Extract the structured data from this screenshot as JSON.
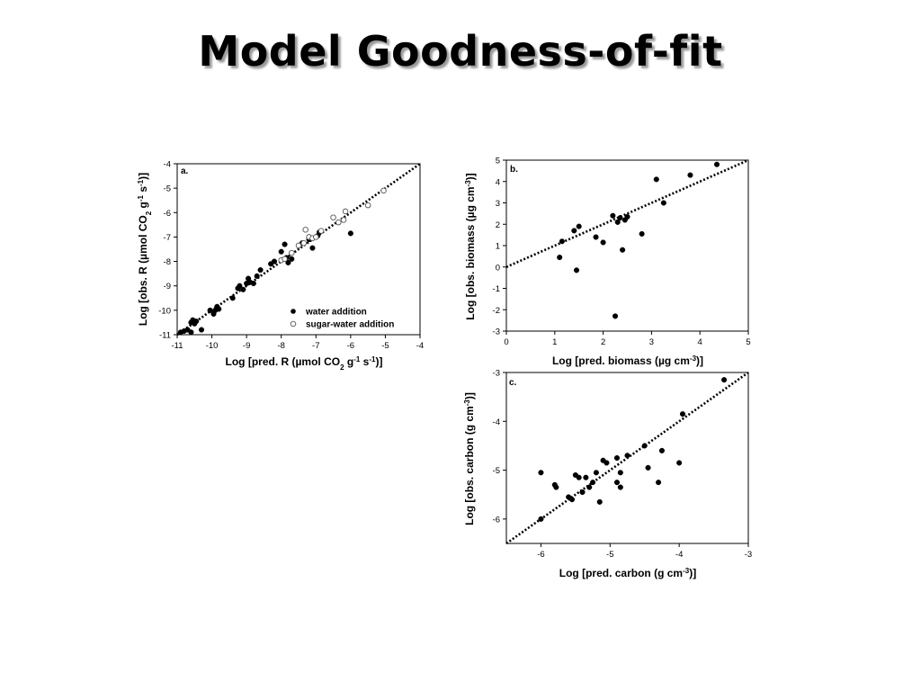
{
  "slide": {
    "title": "Model Goodness-of-fit"
  },
  "colors": {
    "marker": "#000000",
    "open_marker_stroke": "#555555",
    "fit_line": "#000000",
    "text_shadow": "#9a9a9a"
  },
  "chart_data": [
    {
      "type": "scatter",
      "panel_label": "a.",
      "xlabel": "Log [pred. R (µmol CO2 g-1 s-1)]",
      "ylabel": "Log [obs. R (µmol CO2 g-1 s-1)]",
      "xlim": [
        -11,
        -4
      ],
      "ylim": [
        -11,
        -4
      ],
      "x_ticks": [
        -11,
        -10,
        -9,
        -8,
        -7,
        -6,
        -5,
        -4
      ],
      "y_ticks": [
        -11,
        -10,
        -9,
        -8,
        -7,
        -6,
        -5,
        -4
      ],
      "fit_line": [
        [
          -11,
          -11
        ],
        [
          -4,
          -4
        ]
      ],
      "legend": {
        "position": "bottom-right"
      },
      "series": [
        {
          "name": "water addition",
          "marker": "filled",
          "points": [
            [
              -10.9,
              -10.9
            ],
            [
              -10.8,
              -10.85
            ],
            [
              -10.7,
              -10.8
            ],
            [
              -10.6,
              -10.5
            ],
            [
              -10.55,
              -10.4
            ],
            [
              -10.5,
              -10.55
            ],
            [
              -10.45,
              -10.45
            ],
            [
              -10.6,
              -10.9
            ],
            [
              -10.3,
              -10.8
            ],
            [
              -10.05,
              -10.0
            ],
            [
              -9.95,
              -10.15
            ],
            [
              -9.9,
              -10.0
            ],
            [
              -9.85,
              -9.85
            ],
            [
              -9.8,
              -9.95
            ],
            [
              -9.4,
              -9.5
            ],
            [
              -9.25,
              -9.1
            ],
            [
              -9.2,
              -9.0
            ],
            [
              -9.1,
              -9.15
            ],
            [
              -9.0,
              -8.9
            ],
            [
              -8.95,
              -8.7
            ],
            [
              -8.9,
              -8.85
            ],
            [
              -8.8,
              -8.9
            ],
            [
              -8.7,
              -8.6
            ],
            [
              -8.6,
              -8.35
            ],
            [
              -8.3,
              -8.1
            ],
            [
              -8.2,
              -8.0
            ],
            [
              -8.0,
              -7.6
            ],
            [
              -7.9,
              -7.3
            ],
            [
              -7.85,
              -7.85
            ],
            [
              -7.8,
              -8.05
            ],
            [
              -7.7,
              -7.9
            ],
            [
              -7.4,
              -7.25
            ],
            [
              -7.2,
              -7.1
            ],
            [
              -7.1,
              -7.45
            ],
            [
              -6.95,
              -6.95
            ],
            [
              -6.9,
              -6.8
            ],
            [
              -6.0,
              -6.85
            ]
          ]
        },
        {
          "name": "sugar-water addition",
          "marker": "open",
          "points": [
            [
              -8.0,
              -7.95
            ],
            [
              -7.9,
              -7.9
            ],
            [
              -7.7,
              -7.65
            ],
            [
              -7.5,
              -7.35
            ],
            [
              -7.35,
              -7.25
            ],
            [
              -7.3,
              -6.7
            ],
            [
              -7.2,
              -7.0
            ],
            [
              -7.1,
              -7.05
            ],
            [
              -7.0,
              -7.0
            ],
            [
              -6.85,
              -6.75
            ],
            [
              -6.5,
              -6.2
            ],
            [
              -6.35,
              -6.4
            ],
            [
              -6.2,
              -6.3
            ],
            [
              -6.15,
              -5.95
            ],
            [
              -5.5,
              -5.7
            ],
            [
              -5.05,
              -5.1
            ]
          ]
        }
      ]
    },
    {
      "type": "scatter",
      "panel_label": "b.",
      "xlabel": "Log [pred. biomass (µg cm-3)]",
      "ylabel": "Log [obs. biomass (µg cm-3)]",
      "xlim": [
        0,
        5
      ],
      "ylim": [
        -3,
        5
      ],
      "x_ticks": [
        0,
        1,
        2,
        3,
        4,
        5
      ],
      "y_ticks": [
        -3,
        -2,
        -1,
        0,
        1,
        2,
        3,
        4,
        5
      ],
      "fit_line": [
        [
          0,
          0
        ],
        [
          5,
          5
        ]
      ],
      "series": [
        {
          "name": "",
          "marker": "filled",
          "points": [
            [
              1.1,
              0.45
            ],
            [
              1.15,
              1.2
            ],
            [
              1.4,
              1.7
            ],
            [
              1.45,
              -0.15
            ],
            [
              1.5,
              1.9
            ],
            [
              1.85,
              1.4
            ],
            [
              2.0,
              1.15
            ],
            [
              2.2,
              2.4
            ],
            [
              2.25,
              -2.3
            ],
            [
              2.3,
              2.1
            ],
            [
              2.35,
              2.3
            ],
            [
              2.4,
              0.8
            ],
            [
              2.45,
              2.2
            ],
            [
              2.5,
              2.35
            ],
            [
              2.8,
              1.55
            ],
            [
              3.1,
              4.1
            ],
            [
              3.25,
              3.0
            ],
            [
              3.8,
              4.3
            ],
            [
              4.35,
              4.8
            ]
          ]
        }
      ]
    },
    {
      "type": "scatter",
      "panel_label": "c.",
      "xlabel": "Log [pred. carbon (g cm-3)]",
      "ylabel": "Log [obs. carbon (g cm-3)]",
      "xlim": [
        -6.5,
        -3
      ],
      "ylim": [
        -6.5,
        -3
      ],
      "x_ticks": [
        -6,
        -5,
        -4,
        -3
      ],
      "y_ticks": [
        -6,
        -5,
        -4,
        -3
      ],
      "fit_line": [
        [
          -6.5,
          -6.5
        ],
        [
          -3,
          -3
        ]
      ],
      "series": [
        {
          "name": "",
          "marker": "filled",
          "points": [
            [
              -6.0,
              -6.0
            ],
            [
              -6.0,
              -5.05
            ],
            [
              -5.8,
              -5.3
            ],
            [
              -5.78,
              -5.35
            ],
            [
              -5.6,
              -5.55
            ],
            [
              -5.55,
              -5.6
            ],
            [
              -5.5,
              -5.1
            ],
            [
              -5.45,
              -5.15
            ],
            [
              -5.4,
              -5.45
            ],
            [
              -5.35,
              -5.15
            ],
            [
              -5.3,
              -5.35
            ],
            [
              -5.25,
              -5.25
            ],
            [
              -5.2,
              -5.05
            ],
            [
              -5.15,
              -5.65
            ],
            [
              -5.1,
              -4.8
            ],
            [
              -5.05,
              -4.85
            ],
            [
              -4.9,
              -4.75
            ],
            [
              -4.9,
              -5.25
            ],
            [
              -4.85,
              -5.35
            ],
            [
              -4.85,
              -5.05
            ],
            [
              -4.75,
              -4.7
            ],
            [
              -4.5,
              -4.5
            ],
            [
              -4.45,
              -4.95
            ],
            [
              -4.3,
              -5.25
            ],
            [
              -4.25,
              -4.6
            ],
            [
              -4.0,
              -4.85
            ],
            [
              -3.95,
              -3.85
            ],
            [
              -3.35,
              -3.15
            ]
          ]
        }
      ]
    }
  ]
}
